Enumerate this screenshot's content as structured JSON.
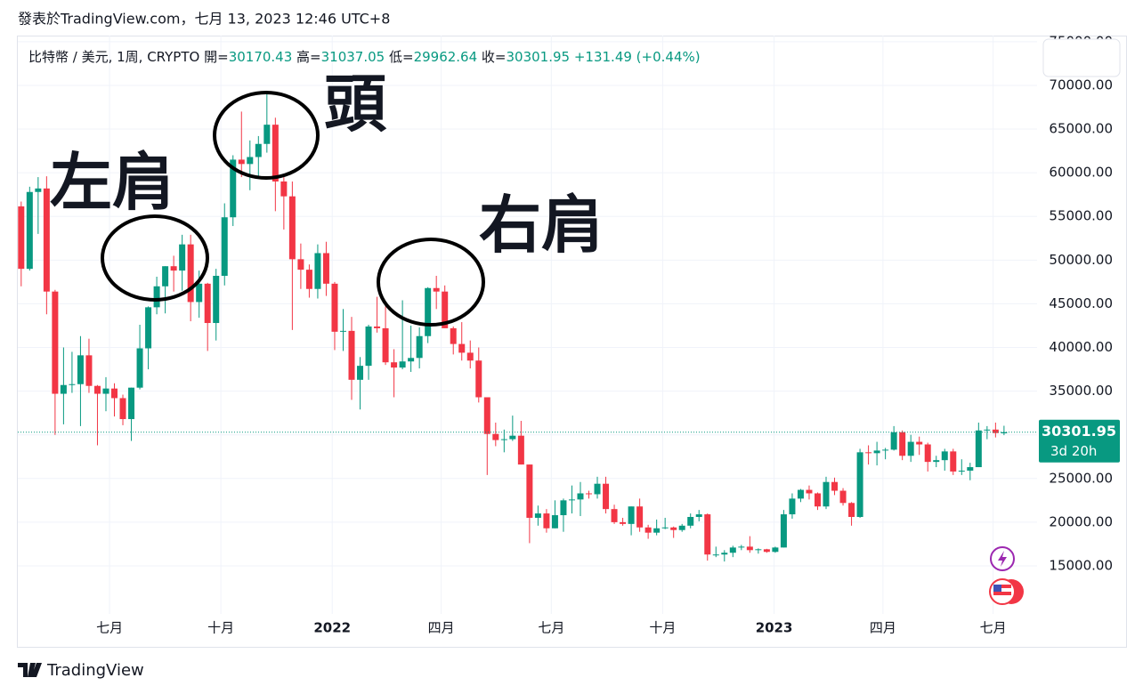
{
  "chart_data": {
    "type": "candlestick",
    "header": "發表於TradingView.com，七月 13, 2023 12:46 UTC+8",
    "symbol": "比特幣 / 美元, 1周, CRYPTO",
    "ohlc_labels": [
      "開=",
      "高=",
      "低=",
      "收="
    ],
    "change_text": "+131.49 (+0.44%)",
    "countdown": "3d 20h",
    "brand": "TradingView",
    "annotations": [
      "左肩",
      "頭",
      "右肩"
    ],
    "up_color": "#089981",
    "down_color": "#f23645",
    "grid": true,
    "ylim": [
      5730,
      75700
    ],
    "yticks": [
      {
        "value": 15000,
        "label": "15000.00"
      },
      {
        "value": 20000,
        "label": "20000.00"
      },
      {
        "value": 25000,
        "label": "25000.00"
      },
      {
        "value": 30000,
        "label": "30000.00"
      },
      {
        "value": 35000,
        "label": "35000.00"
      },
      {
        "value": 40000,
        "label": "40000.00"
      },
      {
        "value": 45000,
        "label": "45000.00"
      },
      {
        "value": 50000,
        "label": "50000.00"
      },
      {
        "value": 55000,
        "label": "55000.00"
      },
      {
        "value": 60000,
        "label": "60000.00"
      },
      {
        "value": 65000,
        "label": "65000.00"
      },
      {
        "value": 70000,
        "label": "70000.00"
      },
      {
        "value": 75000,
        "label": "75000.00"
      }
    ],
    "xlim": [
      -0.4,
      119.9
    ],
    "xticks": [
      {
        "value": 10.43,
        "label": "七月"
      },
      {
        "value": 23.57,
        "label": "十月"
      },
      {
        "value": 36.71,
        "label": "2022"
      },
      {
        "value": 49.57,
        "label": "四月"
      },
      {
        "value": 62.57,
        "label": "七月"
      },
      {
        "value": 75.71,
        "label": "十月"
      },
      {
        "value": 88.86,
        "label": "2023"
      },
      {
        "value": 101.71,
        "label": "四月"
      },
      {
        "value": 114.71,
        "label": "七月"
      }
    ],
    "open": [
      56150,
      49000,
      57800,
      58200,
      46400,
      34700,
      35700,
      35800,
      39100,
      35600,
      34700,
      35300,
      34200,
      31800,
      35400,
      39900,
      44600,
      47000,
      49300,
      48800,
      51800,
      45200,
      47300,
      42800,
      48200,
      54900,
      61500,
      61000,
      61800,
      63300,
      65500,
      59000,
      57300,
      50100,
      48900,
      46700,
      50800,
      47300,
      41800,
      41900,
      36300,
      37900,
      42400,
      42200,
      38300,
      37700,
      38400,
      38800,
      41300,
      46800,
      46400,
      42200,
      40400,
      39400,
      38500,
      34300,
      30100,
      29400,
      29500,
      29900,
      26600,
      20500,
      21000,
      19300,
      20800,
      22500,
      22600,
      23300,
      23200,
      24400,
      21500,
      20000,
      19800,
      21800,
      19400,
      18800,
      19300,
      19400,
      19100,
      19600,
      20600,
      20900,
      16300,
      16300,
      16500,
      17100,
      17200,
      16800,
      16900,
      16600,
      17100,
      20900,
      22700,
      23700,
      23300,
      21800,
      24600,
      23600,
      22200,
      20600,
      28000,
      27900,
      28200,
      28300,
      30300,
      27600,
      29200,
      28900,
      26900,
      27100,
      28100,
      25800,
      25900,
      26300,
      30500,
      30600,
      30170.43
    ],
    "high": [
      56700,
      58400,
      59500,
      59600,
      46600,
      40000,
      39500,
      41300,
      41000,
      35700,
      36600,
      35900,
      34600,
      35400,
      42600,
      44700,
      48100,
      49300,
      50500,
      52900,
      52900,
      48800,
      47400,
      49000,
      56500,
      62000,
      67000,
      63700,
      64200,
      69000,
      66300,
      59500,
      59000,
      51900,
      49500,
      51800,
      52100,
      47500,
      44400,
      43500,
      38900,
      42600,
      45800,
      44700,
      39800,
      45400,
      42500,
      42300,
      46900,
      48200,
      47100,
      42400,
      42900,
      40800,
      40000,
      34300,
      31400,
      30600,
      32200,
      31600,
      26600,
      21900,
      21500,
      22500,
      22700,
      24200,
      24600,
      23600,
      25200,
      25200,
      22000,
      20500,
      21800,
      22700,
      19700,
      20300,
      20500,
      19500,
      19800,
      21000,
      21400,
      21000,
      17200,
      16800,
      17300,
      17400,
      18400,
      17000,
      16950,
      17200,
      21400,
      23300,
      23800,
      24200,
      23400,
      25200,
      25100,
      23900,
      22300,
      28400,
      28800,
      29200,
      28500,
      31000,
      30500,
      30000,
      29800,
      29100,
      27600,
      28400,
      28400,
      27200,
      26800,
      31400,
      31000,
      31400,
      31037.05
    ],
    "low": [
      47000,
      48800,
      53000,
      43800,
      30000,
      31200,
      34800,
      31000,
      34800,
      28800,
      32700,
      32100,
      31100,
      29300,
      35200,
      37500,
      43800,
      43900,
      46400,
      46500,
      43000,
      43400,
      39600,
      40800,
      47100,
      53900,
      59500,
      58000,
      59600,
      62300,
      55600,
      53500,
      42000,
      46700,
      45700,
      45600,
      45900,
      39700,
      39600,
      34000,
      32900,
      36300,
      41700,
      38000,
      34300,
      37500,
      37200,
      37600,
      40500,
      44400,
      42200,
      39200,
      38500,
      37600,
      33700,
      25400,
      28700,
      28000,
      29300,
      26600,
      17600,
      19600,
      18800,
      19300,
      18900,
      21000,
      20700,
      22700,
      22700,
      21000,
      19800,
      19600,
      18500,
      18900,
      18100,
      18500,
      19200,
      18200,
      18900,
      19300,
      20100,
      15600,
      16000,
      15500,
      16000,
      16800,
      16500,
      16400,
      16500,
      16500,
      17100,
      20400,
      22300,
      22600,
      21400,
      21500,
      23100,
      21900,
      19600,
      20500,
      26600,
      26500,
      27200,
      28200,
      27100,
      26900,
      27700,
      25800,
      26300,
      25900,
      25400,
      25400,
      24800,
      26300,
      29500,
      29700,
      29962.64
    ],
    "close": [
      49000,
      57800,
      58200,
      46400,
      34700,
      35700,
      35800,
      39100,
      35600,
      34700,
      35300,
      34200,
      31800,
      35400,
      39900,
      44600,
      47000,
      49300,
      48800,
      51800,
      45200,
      47300,
      42800,
      48200,
      54900,
      61500,
      61000,
      61800,
      63300,
      65500,
      59000,
      57300,
      50100,
      48900,
      46700,
      50800,
      47300,
      41800,
      41900,
      36300,
      37900,
      42400,
      42200,
      38300,
      37700,
      38400,
      38800,
      41300,
      46800,
      46400,
      42200,
      40400,
      39400,
      38500,
      34300,
      30100,
      29400,
      29500,
      29900,
      26600,
      20500,
      21000,
      19300,
      20800,
      22500,
      22600,
      23300,
      23200,
      24400,
      21500,
      20000,
      19800,
      21800,
      19400,
      18800,
      19300,
      19400,
      19100,
      19600,
      20600,
      20900,
      16300,
      16300,
      16500,
      17100,
      17200,
      16800,
      16900,
      16600,
      17100,
      20900,
      22700,
      23700,
      23300,
      21800,
      24600,
      23600,
      22200,
      20600,
      28000,
      27900,
      28200,
      28300,
      30300,
      27600,
      29200,
      28900,
      26900,
      27100,
      28100,
      25800,
      25900,
      26300,
      30500,
      30600,
      30200,
      30301.95
    ]
  }
}
